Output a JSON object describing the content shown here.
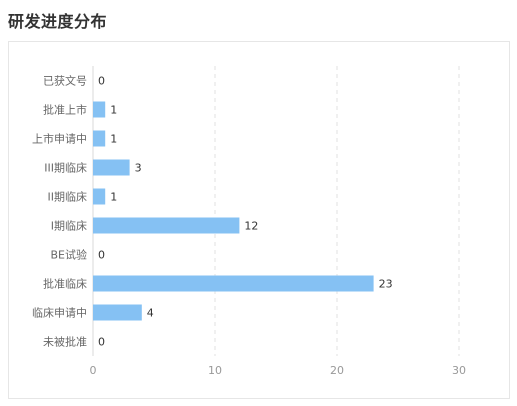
{
  "page": {
    "title": "研发进度分布"
  },
  "colors": {
    "bar": "#85c1f3",
    "grid": "#e2e2e2",
    "axis": "#d9d9d9"
  },
  "chart_data": {
    "type": "bar",
    "orientation": "horizontal",
    "categories": [
      "已获文号",
      "批准上市",
      "上市申请中",
      "III期临床",
      "II期临床",
      "I期临床",
      "BE试验",
      "批准临床",
      "临床申请中",
      "未被批准"
    ],
    "values": [
      0,
      1,
      1,
      3,
      1,
      12,
      0,
      23,
      4,
      0
    ],
    "xlim": [
      0,
      30
    ],
    "xticks": [
      0,
      10,
      20,
      30
    ],
    "grid": "vertical dashed",
    "legend": "none",
    "data_labels": true
  }
}
